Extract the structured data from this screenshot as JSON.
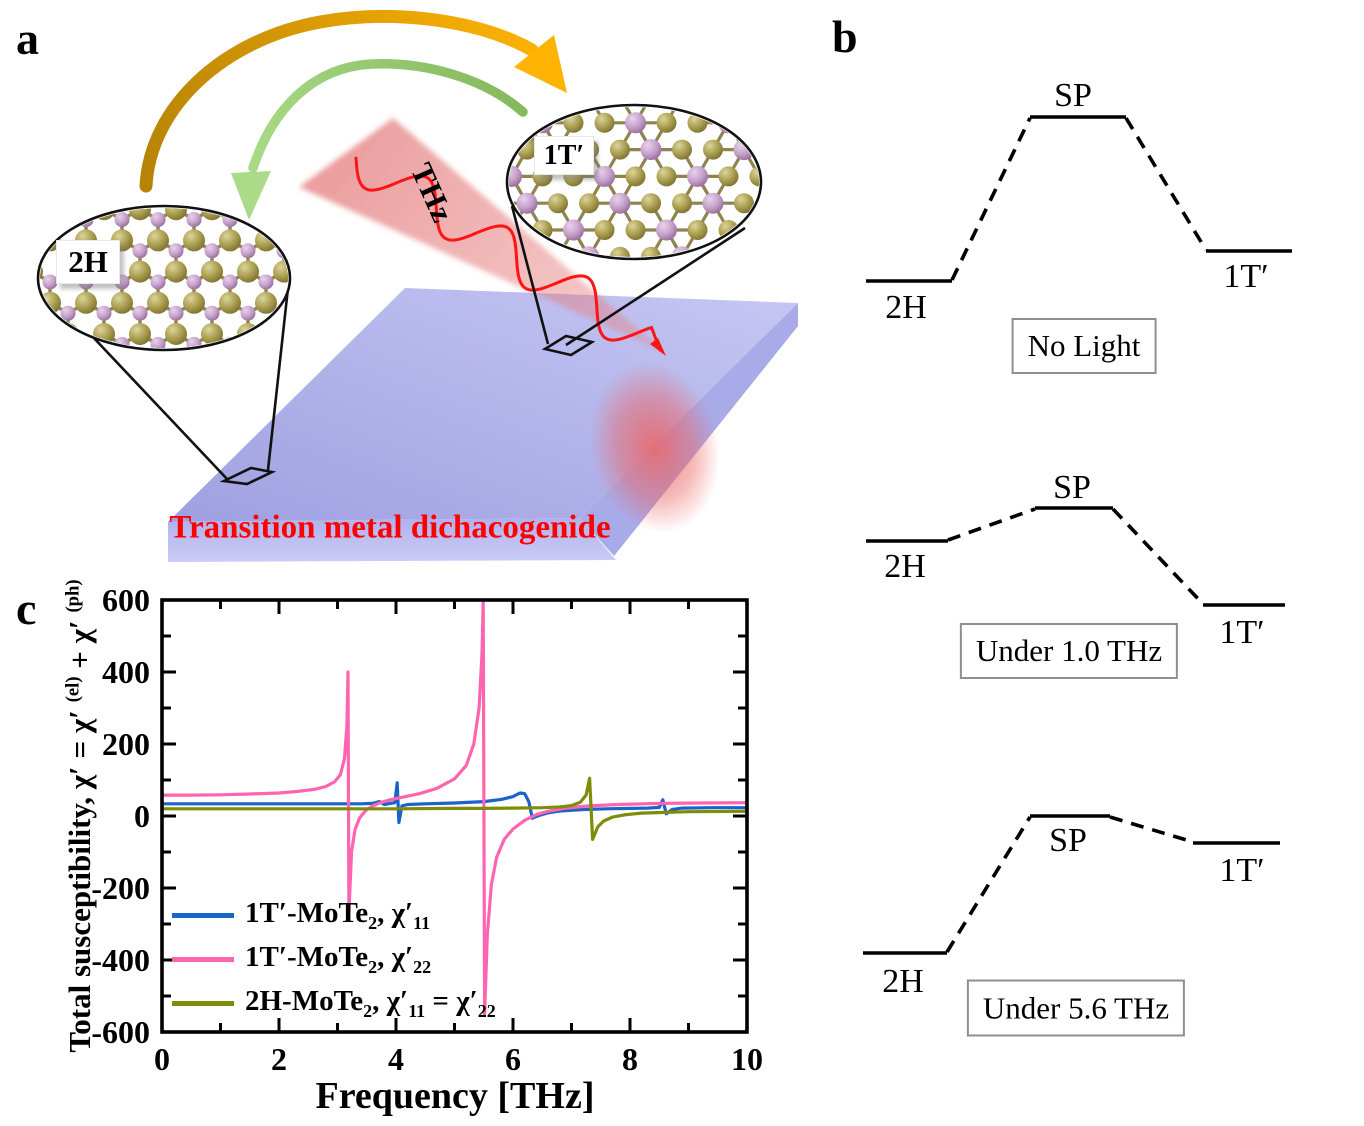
{
  "panel_a": {
    "label": "a",
    "beam_label": "THz",
    "substrate_label": "Transition metal dichacogenide",
    "inset_left_label": "2H",
    "inset_right_label": "1T′",
    "colors": {
      "gold_arrow_tail": "#bd8a07",
      "gold_arrow_head": "#ffb404",
      "green_arrow_tail": "#85b95e",
      "green_arrow_head": "#abdb89",
      "beam_fill": "#e06464",
      "beam_wave": "#ff1414",
      "slab_top_light": "#c6c7f4",
      "slab_top_dark": "#9fa0e0",
      "slab_front": "#b2b3ee",
      "slab_front_light": "#cbccf6",
      "slab_side": "#a9aae8",
      "substrate_text": "#ff0000",
      "atom_olive": "#a89c4e",
      "atom_plum": "#c49fc9",
      "bond": "#8f8450",
      "outline": "#111111"
    }
  },
  "panel_b": {
    "label": "b",
    "diagrams": [
      {
        "left_level": "2H",
        "barrier": "SP",
        "right_level": "1T′",
        "caption": "No Light"
      },
      {
        "left_level": "2H",
        "barrier": "SP",
        "right_level": "1T′",
        "caption": "Under 1.0 THz"
      },
      {
        "left_level": "2H",
        "barrier": "SP",
        "right_level": "1T′",
        "caption": "Under 5.6 THz"
      }
    ]
  },
  "panel_c": {
    "label": "c"
  },
  "chart_data": {
    "type": "line",
    "title": "",
    "xlabel": "Frequency [THz]",
    "ylabel_parts": [
      {
        "t": "Total susceptibility, χ′ = χ′ "
      },
      {
        "t": "(el)",
        "sup": true
      },
      {
        "t": " + χ′ "
      },
      {
        "t": "(ph)",
        "sup": true
      }
    ],
    "xlim": [
      0,
      10
    ],
    "ylim": [
      -600,
      600
    ],
    "xticks": [
      0,
      2,
      4,
      6,
      8,
      10
    ],
    "x_minor_ticks": [
      1,
      3,
      5,
      7,
      9
    ],
    "yticks": [
      600,
      400,
      200,
      0,
      -200,
      -400,
      -600
    ],
    "y_minor_ticks": [
      500,
      300,
      100,
      -100,
      -300,
      -500
    ],
    "grid": false,
    "legend_position": "inside bottom-left",
    "series": [
      {
        "name": "1T′-MoTe2, χ′11",
        "label_parts": [
          {
            "t": "1T′-MoTe"
          },
          {
            "t": "2",
            "sub": true
          },
          {
            "t": ", χ′"
          },
          {
            "t": "11",
            "sub": true
          }
        ],
        "color": "#1a63c9",
        "points": [
          [
            0,
            34
          ],
          [
            1,
            34
          ],
          [
            2,
            34
          ],
          [
            3,
            34
          ],
          [
            3.4,
            34
          ],
          [
            3.6,
            35
          ],
          [
            3.72,
            40
          ],
          [
            3.8,
            32
          ],
          [
            3.9,
            35
          ],
          [
            3.98,
            37
          ],
          [
            4.02,
            92
          ],
          [
            4.05,
            -18
          ],
          [
            4.1,
            28
          ],
          [
            4.2,
            32
          ],
          [
            4.5,
            34
          ],
          [
            5,
            36
          ],
          [
            5.5,
            40
          ],
          [
            5.8,
            46
          ],
          [
            6.0,
            54
          ],
          [
            6.12,
            64
          ],
          [
            6.2,
            62
          ],
          [
            6.27,
            40
          ],
          [
            6.33,
            -6
          ],
          [
            6.45,
            2
          ],
          [
            6.6,
            9
          ],
          [
            6.8,
            14
          ],
          [
            7.2,
            18
          ],
          [
            7.6,
            20
          ],
          [
            8.0,
            21
          ],
          [
            8.3,
            22
          ],
          [
            8.5,
            24
          ],
          [
            8.56,
            45
          ],
          [
            8.62,
            6
          ],
          [
            8.72,
            18
          ],
          [
            8.9,
            22
          ],
          [
            9.4,
            23
          ],
          [
            10,
            23
          ]
        ]
      },
      {
        "name": "1T′-MoTe2, χ′22",
        "label_parts": [
          {
            "t": "1T′-MoTe"
          },
          {
            "t": "2",
            "sub": true
          },
          {
            "t": ", χ′"
          },
          {
            "t": "22",
            "sub": true
          }
        ],
        "color": "#ff64b0",
        "points": [
          [
            0,
            58
          ],
          [
            0.5,
            58
          ],
          [
            1,
            59
          ],
          [
            1.5,
            61
          ],
          [
            2,
            64
          ],
          [
            2.3,
            68
          ],
          [
            2.6,
            74
          ],
          [
            2.8,
            82
          ],
          [
            2.95,
            95
          ],
          [
            3.05,
            115
          ],
          [
            3.12,
            160
          ],
          [
            3.16,
            250
          ],
          [
            3.18,
            400
          ],
          [
            3.195,
            -270
          ],
          [
            3.24,
            -100
          ],
          [
            3.3,
            -38
          ],
          [
            3.38,
            -5
          ],
          [
            3.48,
            15
          ],
          [
            3.6,
            28
          ],
          [
            3.75,
            38
          ],
          [
            3.9,
            45
          ],
          [
            4.1,
            52
          ],
          [
            4.4,
            62
          ],
          [
            4.7,
            77
          ],
          [
            5.0,
            103
          ],
          [
            5.2,
            140
          ],
          [
            5.33,
            200
          ],
          [
            5.42,
            300
          ],
          [
            5.47,
            450
          ],
          [
            5.49,
            600
          ],
          [
            5.515,
            -550
          ],
          [
            5.56,
            -330
          ],
          [
            5.63,
            -190
          ],
          [
            5.72,
            -115
          ],
          [
            5.85,
            -65
          ],
          [
            6.0,
            -36
          ],
          [
            6.2,
            -12
          ],
          [
            6.4,
            4
          ],
          [
            6.6,
            13
          ],
          [
            6.9,
            22
          ],
          [
            7.3,
            28
          ],
          [
            7.8,
            32
          ],
          [
            8.5,
            35
          ],
          [
            9.2,
            36
          ],
          [
            10,
            37
          ]
        ]
      },
      {
        "name": "2H-MoTe2, χ′11 = χ′22",
        "label_parts": [
          {
            "t": "2H-MoTe"
          },
          {
            "t": "2",
            "sub": true
          },
          {
            "t": ", χ′"
          },
          {
            "t": "11",
            "sub": true
          },
          {
            "t": " = χ′"
          },
          {
            "t": "22",
            "sub": true
          }
        ],
        "color": "#7e8c09",
        "points": [
          [
            0,
            20
          ],
          [
            1,
            20
          ],
          [
            2,
            20
          ],
          [
            3,
            20
          ],
          [
            4,
            20
          ],
          [
            5,
            21
          ],
          [
            5.5,
            21
          ],
          [
            6,
            22
          ],
          [
            6.5,
            23
          ],
          [
            6.8,
            25
          ],
          [
            7.0,
            29
          ],
          [
            7.15,
            38
          ],
          [
            7.25,
            58
          ],
          [
            7.31,
            105
          ],
          [
            7.36,
            -65
          ],
          [
            7.45,
            -30
          ],
          [
            7.55,
            -14
          ],
          [
            7.7,
            -3
          ],
          [
            7.9,
            3
          ],
          [
            8.2,
            8
          ],
          [
            8.6,
            10
          ],
          [
            9,
            12
          ],
          [
            10,
            13
          ]
        ]
      }
    ]
  }
}
